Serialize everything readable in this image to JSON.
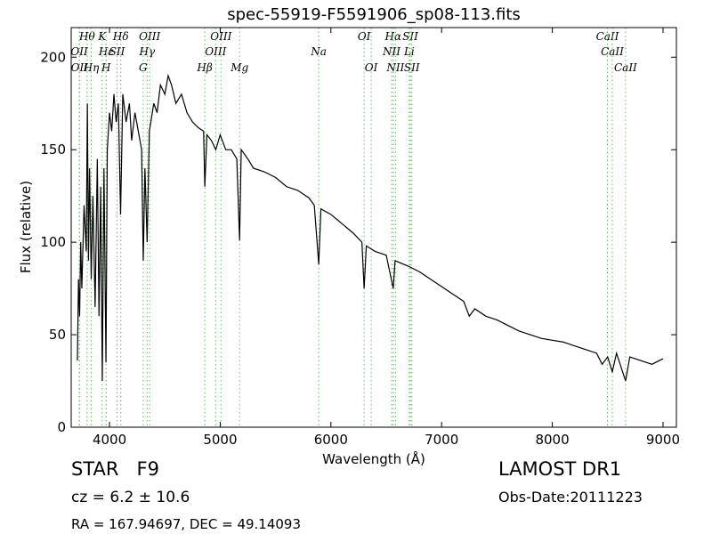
{
  "chart_data": {
    "type": "line",
    "title": "spec-55919-F5591906_sp08-113.fits",
    "x_label": "Wavelength (Å)",
    "y_label": "Flux (relative)",
    "color": "#000000",
    "line_marker_color": "#66bb66",
    "xlim": [
      3654,
      9121
    ],
    "ylim": [
      0,
      216
    ],
    "xticks": [
      4000,
      5000,
      6000,
      7000,
      8000,
      9000
    ],
    "yticks": [
      0,
      50,
      100,
      150,
      200
    ],
    "grid": false,
    "x": [
      3710,
      3720,
      3730,
      3740,
      3750,
      3770,
      3790,
      3800,
      3810,
      3820,
      3835,
      3850,
      3870,
      3890,
      3905,
      3920,
      3935,
      3950,
      3968,
      3980,
      4000,
      4020,
      4040,
      4060,
      4080,
      4100,
      4120,
      4150,
      4180,
      4200,
      4230,
      4260,
      4290,
      4305,
      4320,
      4340,
      4360,
      4400,
      4430,
      4460,
      4500,
      4530,
      4560,
      4600,
      4650,
      4700,
      4750,
      4800,
      4850,
      4861,
      4880,
      4920,
      4960,
      5000,
      5050,
      5100,
      5150,
      5175,
      5190,
      5250,
      5300,
      5400,
      5500,
      5600,
      5700,
      5800,
      5850,
      5890,
      5910,
      6000,
      6100,
      6200,
      6280,
      6300,
      6320,
      6400,
      6500,
      6563,
      6580,
      6700,
      6800,
      6900,
      7000,
      7100,
      7200,
      7250,
      7300,
      7400,
      7500,
      7600,
      7700,
      7800,
      7900,
      8000,
      8100,
      8200,
      8300,
      8400,
      8450,
      8500,
      8542,
      8580,
      8662,
      8700,
      8800,
      8900,
      9000
    ],
    "values": [
      36,
      80,
      60,
      100,
      75,
      120,
      95,
      175,
      90,
      140,
      80,
      125,
      65,
      145,
      60,
      130,
      25,
      140,
      35,
      150,
      170,
      160,
      180,
      165,
      175,
      115,
      180,
      165,
      175,
      155,
      170,
      160,
      150,
      90,
      140,
      100,
      160,
      175,
      170,
      185,
      180,
      190,
      185,
      175,
      180,
      170,
      165,
      162,
      160,
      130,
      158,
      155,
      150,
      158,
      150,
      150,
      145,
      101,
      150,
      145,
      140,
      138,
      135,
      130,
      128,
      124,
      120,
      88,
      118,
      115,
      110,
      105,
      100,
      75,
      98,
      95,
      93,
      75,
      90,
      87,
      84,
      80,
      76,
      72,
      68,
      60,
      64,
      60,
      58,
      55,
      52,
      50,
      48,
      47,
      46,
      44,
      42,
      40,
      34,
      38,
      30,
      40,
      25,
      38,
      36,
      34,
      37
    ],
    "line_labels": [
      [
        {
          "label": "Hθ",
          "x": 3798
        },
        {
          "label": "K",
          "x": 3934
        },
        {
          "label": "Hδ",
          "x": 4102
        },
        {
          "label": "OIII",
          "x": 4363
        },
        {
          "label": "OIII",
          "x": 5007
        },
        {
          "label": "OI",
          "x": 6300
        },
        {
          "label": "Hα",
          "x": 6563
        },
        {
          "label": "SII",
          "x": 6717
        },
        {
          "label": "CaII",
          "x": 8498
        }
      ],
      [
        {
          "label": "OII",
          "x": 3727
        },
        {
          "label": "Hε",
          "x": 3970
        },
        {
          "label": "SII",
          "x": 4068
        },
        {
          "label": "Hγ",
          "x": 4340
        },
        {
          "label": "OIII",
          "x": 4959
        },
        {
          "label": "Na",
          "x": 5890
        },
        {
          "label": "NII",
          "x": 6548
        },
        {
          "label": "Li",
          "x": 6708
        },
        {
          "label": "CaII",
          "x": 8542
        }
      ],
      [
        {
          "label": "OII",
          "x": 3729
        },
        {
          "label": "Hη",
          "x": 3835
        },
        {
          "label": "H",
          "x": 3969
        },
        {
          "label": "G",
          "x": 4304
        },
        {
          "label": "Hβ",
          "x": 4861
        },
        {
          "label": "Mg",
          "x": 5175
        },
        {
          "label": "OI",
          "x": 6364
        },
        {
          "label": "NII",
          "x": 6583
        },
        {
          "label": "SII",
          "x": 6731
        },
        {
          "label": "CaII",
          "x": 8662
        }
      ]
    ]
  },
  "footer": {
    "object": "STAR   F9",
    "redshift": "cz = 6.2 ± 10.6",
    "coords": "RA = 167.94697, DEC = 49.14093",
    "survey": "LAMOST DR1",
    "obs_date": "Obs-Date:20111223"
  }
}
